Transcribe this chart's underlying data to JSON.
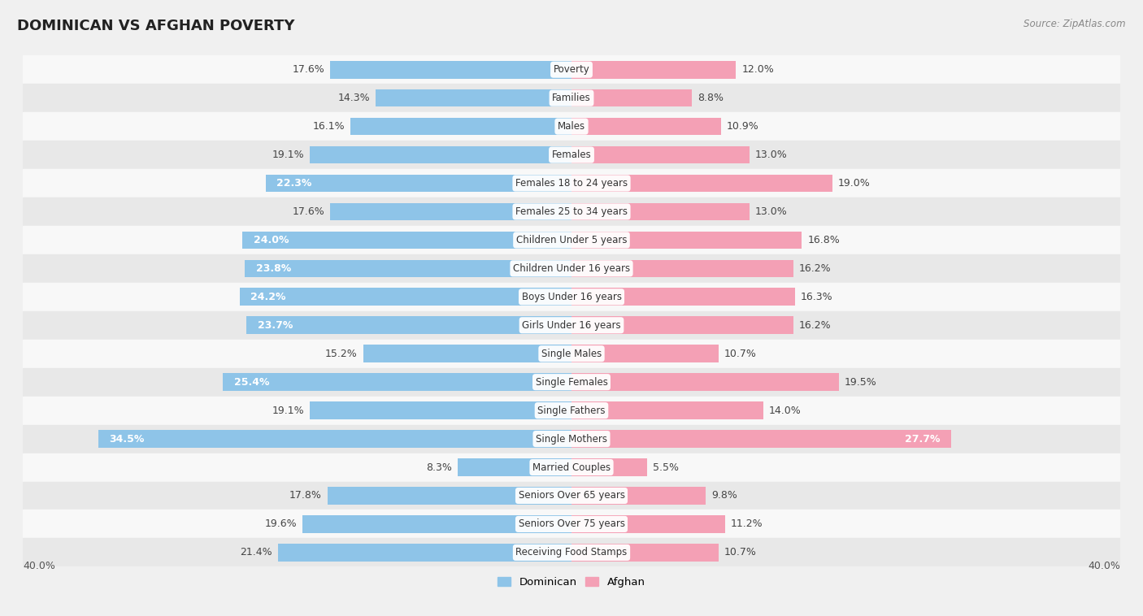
{
  "title": "DOMINICAN VS AFGHAN POVERTY",
  "source": "Source: ZipAtlas.com",
  "categories": [
    "Poverty",
    "Families",
    "Males",
    "Females",
    "Females 18 to 24 years",
    "Females 25 to 34 years",
    "Children Under 5 years",
    "Children Under 16 years",
    "Boys Under 16 years",
    "Girls Under 16 years",
    "Single Males",
    "Single Females",
    "Single Fathers",
    "Single Mothers",
    "Married Couples",
    "Seniors Over 65 years",
    "Seniors Over 75 years",
    "Receiving Food Stamps"
  ],
  "dominican": [
    17.6,
    14.3,
    16.1,
    19.1,
    22.3,
    17.6,
    24.0,
    23.8,
    24.2,
    23.7,
    15.2,
    25.4,
    19.1,
    34.5,
    8.3,
    17.8,
    19.6,
    21.4
  ],
  "afghan": [
    12.0,
    8.8,
    10.9,
    13.0,
    19.0,
    13.0,
    16.8,
    16.2,
    16.3,
    16.2,
    10.7,
    19.5,
    14.0,
    27.7,
    5.5,
    9.8,
    11.2,
    10.7
  ],
  "dominican_color": "#8ec4e8",
  "afghan_color": "#f4a0b5",
  "background_color": "#f0f0f0",
  "row_bg_light": "#f8f8f8",
  "row_bg_dark": "#e8e8e8",
  "bar_height": 0.62,
  "xlim": 40.0,
  "inside_label_threshold": 22.0,
  "label_fontsize": 9.0,
  "cat_fontsize": 8.5,
  "title_fontsize": 13,
  "source_fontsize": 8.5
}
